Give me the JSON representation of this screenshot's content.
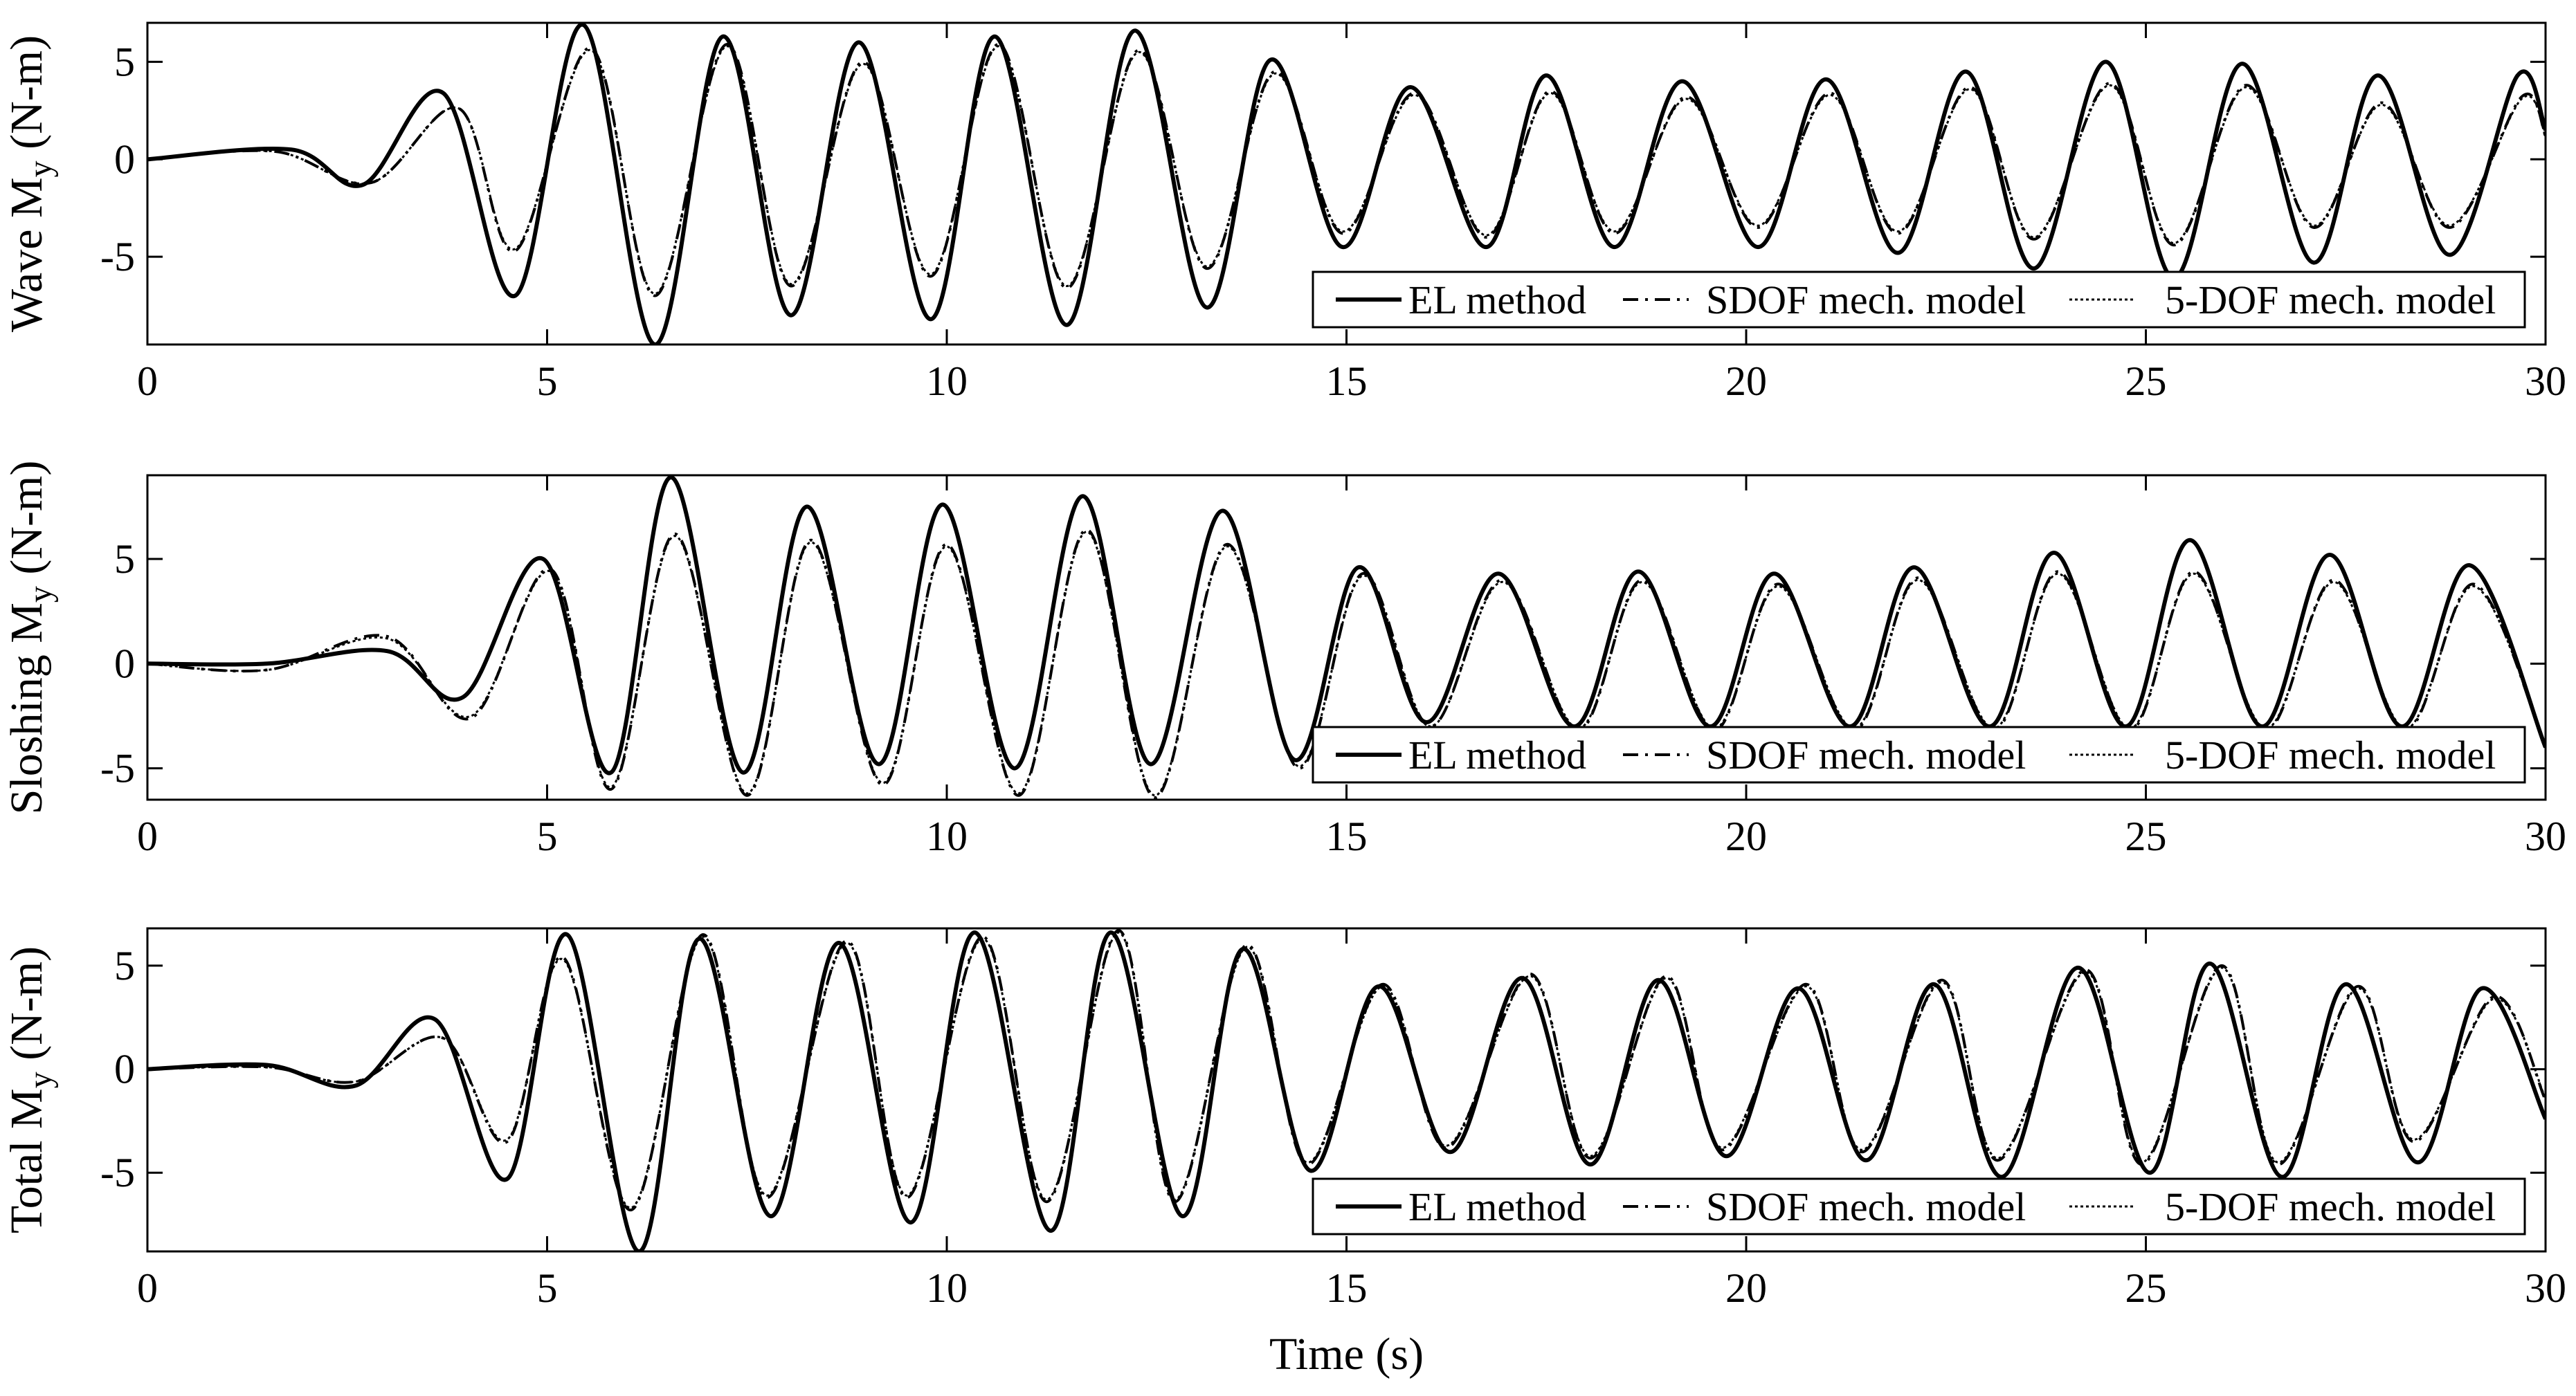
{
  "chart_data": [
    {
      "type": "line",
      "ylabel_main": "Wave M",
      "ylabel_sub": "y",
      "ylabel_unit": " (N-m)",
      "xlim": [
        0,
        30
      ],
      "ylim": [
        -9.5,
        7
      ],
      "xticks": [
        0,
        5,
        10,
        15,
        20,
        25,
        30
      ],
      "yticks": [
        -5,
        0,
        5
      ],
      "legend": [
        "EL method",
        "SDOF mech. model",
        "5-DOF mech. model"
      ],
      "legend_position": "bottom-right",
      "series": [
        {
          "name": "EL method",
          "x": [
            0,
            1.8,
            2.7,
            3.7,
            4.6,
            5.45,
            6.35,
            7.2,
            8.05,
            8.9,
            9.8,
            10.6,
            11.5,
            12.35,
            13.25,
            14.05,
            14.95,
            15.8,
            16.75,
            17.5,
            18.35,
            19.2,
            20.15,
            21.0,
            21.9,
            22.75,
            23.6,
            24.5,
            25.35,
            26.2,
            27.1,
            27.9,
            28.8,
            29.65,
            30
          ],
          "y": [
            0,
            0.5,
            -1.3,
            3.4,
            -7.0,
            6.9,
            -9.5,
            6.3,
            -8.0,
            6.0,
            -8.2,
            6.3,
            -8.5,
            6.6,
            -7.6,
            5.1,
            -4.5,
            3.7,
            -4.5,
            4.3,
            -4.5,
            4.0,
            -4.5,
            4.1,
            -4.8,
            4.5,
            -5.6,
            5.0,
            -6.1,
            4.9,
            -5.3,
            4.3,
            -4.9,
            4.3,
            1.5
          ]
        },
        {
          "name": "SDOF mech. model",
          "x": [
            0,
            1.6,
            2.8,
            3.9,
            4.6,
            5.55,
            6.35,
            7.25,
            8.05,
            8.95,
            9.8,
            10.65,
            11.5,
            12.4,
            13.25,
            14.1,
            14.95,
            15.85,
            16.75,
            17.55,
            18.35,
            19.25,
            20.15,
            21.05,
            21.9,
            22.8,
            23.6,
            24.55,
            25.35,
            26.25,
            27.1,
            27.95,
            28.8,
            29.7,
            30
          ],
          "y": [
            0,
            0.4,
            -1.2,
            2.6,
            -4.7,
            5.7,
            -7.0,
            5.9,
            -6.5,
            5.0,
            -6.0,
            5.9,
            -6.6,
            5.6,
            -5.6,
            4.5,
            -3.8,
            3.4,
            -4.0,
            3.5,
            -3.8,
            3.2,
            -3.5,
            3.4,
            -3.8,
            3.7,
            -4.1,
            3.9,
            -4.4,
            3.8,
            -3.5,
            2.9,
            -3.5,
            3.2,
            1.2
          ]
        },
        {
          "name": "5-DOF mech. model",
          "x": [
            0,
            1.6,
            2.8,
            3.9,
            4.6,
            5.55,
            6.35,
            7.25,
            8.05,
            8.95,
            9.8,
            10.65,
            11.5,
            12.4,
            13.25,
            14.1,
            14.95,
            15.85,
            16.75,
            17.55,
            18.35,
            19.25,
            20.15,
            21.05,
            21.9,
            22.8,
            23.6,
            24.55,
            25.35,
            26.25,
            27.1,
            27.95,
            28.8,
            29.7,
            30
          ],
          "y": [
            0,
            0.4,
            -1.2,
            2.6,
            -4.6,
            5.6,
            -6.9,
            5.8,
            -6.4,
            4.9,
            -5.9,
            5.8,
            -6.5,
            5.5,
            -5.5,
            4.4,
            -3.7,
            3.3,
            -3.9,
            3.4,
            -3.7,
            3.1,
            -3.4,
            3.3,
            -3.7,
            3.6,
            -4.0,
            3.8,
            -4.3,
            3.7,
            -3.4,
            2.8,
            -3.4,
            3.1,
            1.2
          ]
        }
      ]
    },
    {
      "type": "line",
      "ylabel_main": "Sloshing M",
      "ylabel_sub": "y",
      "ylabel_unit": " (N-m)",
      "xlim": [
        0,
        30
      ],
      "ylim": [
        -6.5,
        9
      ],
      "xticks": [
        0,
        5,
        10,
        15,
        20,
        25,
        30
      ],
      "yticks": [
        -5,
        0,
        5
      ],
      "legend": [
        "EL method",
        "SDOF mech. model",
        "5-DOF mech. model"
      ],
      "legend_position": "bottom-right",
      "series": [
        {
          "name": "EL method",
          "x": [
            0,
            1.5,
            3.0,
            3.95,
            4.95,
            5.8,
            6.55,
            7.45,
            8.25,
            9.15,
            9.95,
            10.85,
            11.7,
            12.55,
            13.45,
            14.35,
            15.15,
            16.0,
            16.9,
            17.85,
            18.65,
            19.55,
            20.35,
            21.3,
            22.1,
            23.05,
            23.85,
            24.75,
            25.55,
            26.45,
            27.3,
            28.2,
            29.05,
            30
          ],
          "y": [
            0,
            0,
            0.6,
            -1.6,
            5.0,
            -5.2,
            8.9,
            -5.2,
            7.5,
            -4.8,
            7.6,
            -5.0,
            8.0,
            -4.8,
            7.3,
            -4.6,
            4.6,
            -2.8,
            4.3,
            -3.0,
            4.4,
            -3.0,
            4.3,
            -3.0,
            4.6,
            -3.0,
            5.3,
            -3.0,
            5.9,
            -3.0,
            5.2,
            -3.0,
            4.7,
            -4.0
          ]
        },
        {
          "name": "SDOF mech. model",
          "x": [
            0,
            1.5,
            3.0,
            4.05,
            5.05,
            5.8,
            6.6,
            7.5,
            8.3,
            9.2,
            10.0,
            10.9,
            11.75,
            12.6,
            13.5,
            14.4,
            15.2,
            16.05,
            16.95,
            17.9,
            18.7,
            19.6,
            20.4,
            21.35,
            22.15,
            23.1,
            23.9,
            24.8,
            25.6,
            26.5,
            27.35,
            28.25,
            29.1,
            30
          ],
          "y": [
            0,
            -0.3,
            1.3,
            -2.6,
            4.5,
            -6.0,
            6.2,
            -6.3,
            5.9,
            -5.8,
            5.7,
            -6.3,
            6.4,
            -6.4,
            5.7,
            -5.0,
            4.3,
            -3.0,
            4.0,
            -3.2,
            4.0,
            -3.2,
            3.8,
            -3.2,
            4.1,
            -3.2,
            4.4,
            -3.2,
            4.4,
            -3.2,
            4.0,
            -3.2,
            3.8,
            -4.0
          ]
        },
        {
          "name": "5-DOF mech. model",
          "x": [
            0,
            1.5,
            3.0,
            4.05,
            5.05,
            5.8,
            6.6,
            7.5,
            8.3,
            9.2,
            10.0,
            10.9,
            11.75,
            12.6,
            13.5,
            14.4,
            15.2,
            16.05,
            16.95,
            17.9,
            18.7,
            19.6,
            20.4,
            21.35,
            22.15,
            23.1,
            23.9,
            24.8,
            25.6,
            26.5,
            27.35,
            28.25,
            29.1,
            30
          ],
          "y": [
            0,
            -0.3,
            1.2,
            -2.5,
            4.4,
            -5.9,
            6.1,
            -6.2,
            5.8,
            -5.7,
            5.6,
            -6.2,
            6.3,
            -6.3,
            5.6,
            -4.9,
            4.2,
            -3.0,
            3.9,
            -3.1,
            3.9,
            -3.1,
            3.7,
            -3.1,
            4.0,
            -3.1,
            4.3,
            -3.1,
            4.3,
            -3.1,
            3.9,
            -3.1,
            3.7,
            -3.9
          ]
        }
      ]
    },
    {
      "type": "line",
      "ylabel_main": "Total M",
      "ylabel_sub": "y",
      "ylabel_unit": " (N-m)",
      "xlabel": "Time (s)",
      "xlim": [
        0,
        30
      ],
      "ylim": [
        -8.8,
        6.8
      ],
      "xticks": [
        0,
        5,
        10,
        15,
        20,
        25,
        30
      ],
      "yticks": [
        -5,
        0,
        5
      ],
      "legend": [
        "EL method",
        "SDOF mech. model",
        "5-DOF mech. model"
      ],
      "legend_position": "bottom-right",
      "series": [
        {
          "name": "EL method",
          "x": [
            0,
            1.5,
            2.6,
            3.6,
            4.5,
            5.25,
            6.15,
            6.9,
            7.8,
            8.65,
            9.55,
            10.35,
            11.3,
            12.05,
            12.95,
            13.7,
            14.55,
            15.4,
            16.3,
            17.2,
            18.05,
            18.9,
            19.75,
            20.65,
            21.5,
            22.35,
            23.2,
            24.15,
            25.05,
            25.8,
            26.7,
            27.5,
            28.4,
            29.2,
            30
          ],
          "y": [
            0,
            0.2,
            -0.8,
            2.4,
            -5.3,
            6.5,
            -8.8,
            6.3,
            -7.1,
            6.1,
            -7.4,
            6.6,
            -7.8,
            6.6,
            -7.1,
            5.8,
            -4.9,
            4.0,
            -4.0,
            4.4,
            -4.6,
            4.3,
            -4.2,
            3.9,
            -4.4,
            4.1,
            -5.2,
            4.9,
            -5.0,
            5.1,
            -5.2,
            4.1,
            -4.5,
            3.9,
            -2.4
          ]
        },
        {
          "name": "SDOF mech. model",
          "x": [
            0,
            1.5,
            2.6,
            3.7,
            4.5,
            5.2,
            6.05,
            6.95,
            7.75,
            8.75,
            9.5,
            10.45,
            11.25,
            12.15,
            12.85,
            13.75,
            14.5,
            15.45,
            16.25,
            17.3,
            18.05,
            19.0,
            19.7,
            20.75,
            21.45,
            22.45,
            23.15,
            24.25,
            24.95,
            25.95,
            26.65,
            27.65,
            28.35,
            29.35,
            30
          ],
          "y": [
            0,
            0.1,
            -0.6,
            1.5,
            -3.5,
            5.4,
            -6.8,
            6.5,
            -6.2,
            6.2,
            -6.2,
            6.4,
            -6.4,
            6.7,
            -6.4,
            6.0,
            -4.6,
            4.1,
            -3.8,
            4.6,
            -4.3,
            4.5,
            -3.9,
            4.1,
            -4.0,
            4.3,
            -4.4,
            4.8,
            -4.6,
            5.0,
            -4.6,
            4.0,
            -3.5,
            3.5,
            -1.5
          ]
        },
        {
          "name": "5-DOF mech. model",
          "x": [
            0,
            1.5,
            2.6,
            3.7,
            4.5,
            5.2,
            6.05,
            6.95,
            7.75,
            8.75,
            9.5,
            10.45,
            11.25,
            12.15,
            12.85,
            13.75,
            14.5,
            15.45,
            16.25,
            17.3,
            18.05,
            19.0,
            19.7,
            20.75,
            21.45,
            22.45,
            23.15,
            24.25,
            24.95,
            25.95,
            26.65,
            27.65,
            28.35,
            29.35,
            30
          ],
          "y": [
            0,
            0.1,
            -0.6,
            1.5,
            -3.4,
            5.3,
            -6.7,
            6.4,
            -6.1,
            6.1,
            -6.1,
            6.3,
            -6.3,
            6.6,
            -6.3,
            5.9,
            -4.5,
            4.0,
            -3.7,
            4.5,
            -4.2,
            4.4,
            -3.8,
            4.0,
            -3.9,
            4.2,
            -4.3,
            4.7,
            -4.5,
            4.9,
            -4.5,
            3.9,
            -3.4,
            3.4,
            -1.4
          ]
        }
      ]
    }
  ]
}
